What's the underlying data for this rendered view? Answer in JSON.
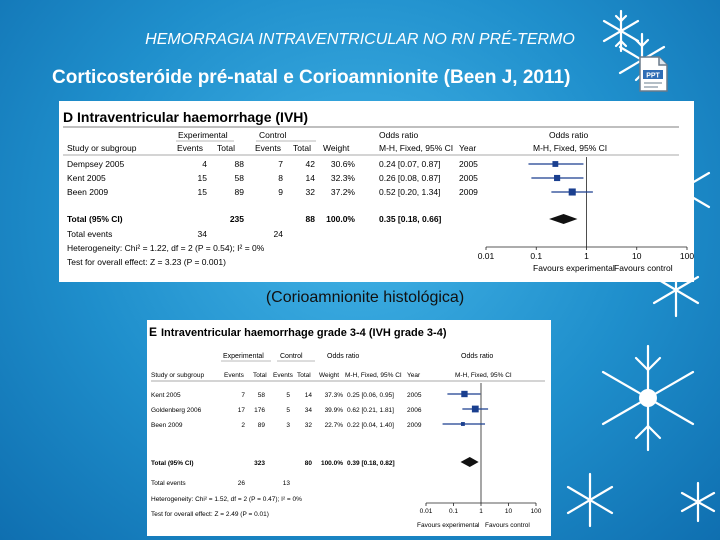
{
  "slide": {
    "subtitle": "HEMORRAGIA INTRAVENTRICULAR NO RN PRÉ-TERMO",
    "title": "Corticosteróide pré-natal e Corioamnionite (Been J, 2011)",
    "caption": "(Corioamnionite histológica)",
    "accent_color": "#1f8fcc",
    "icons": [
      "snowflake-icon",
      "ppt-file-icon"
    ]
  },
  "forest_d": {
    "label": "D",
    "heading": "Intraventricular haemorrhage (IVH)",
    "group_experimental": "Experimental",
    "group_control": "Control",
    "col_odds_ratio": "Odds ratio",
    "col_odds_ratio_plot": "Odds ratio",
    "columns": [
      "Study or subgroup",
      "Events",
      "Total",
      "Events",
      "Total",
      "Weight",
      "M-H, Fixed, 95% CI",
      "Year",
      "M-H, Fixed, 95% CI"
    ],
    "rows": [
      {
        "study": "Dempsey 2005",
        "e_events": "4",
        "e_total": "88",
        "c_events": "7",
        "c_total": "42",
        "weight": "30.6%",
        "ci": "0.24 [0.07, 0.87]",
        "year": "2005"
      },
      {
        "study": "Kent 2005",
        "e_events": "15",
        "e_total": "58",
        "c_events": "8",
        "c_total": "14",
        "weight": "32.3%",
        "ci": "0.26 [0.08, 0.87]",
        "year": "2005"
      },
      {
        "study": "Been 2009",
        "e_events": "15",
        "e_total": "89",
        "c_events": "9",
        "c_total": "32",
        "weight": "37.2%",
        "ci": "0.52 [0.20, 1.34]",
        "year": "2009"
      }
    ],
    "total": {
      "label": "Total (95% CI)",
      "e_total": "235",
      "c_total": "88",
      "weight": "100.0%",
      "ci": "0.35 [0.18, 0.66]"
    },
    "total_events": {
      "label": "Total events",
      "e": "34",
      "c": "24"
    },
    "heterogeneity": "Heterogeneity: Chi² = 1.22, df = 2 (P = 0.54); I² = 0%",
    "overall": "Test for overall effect: Z = 3.23 (P = 0.001)",
    "ticks": [
      "0.01",
      "0.1",
      "1",
      "10",
      "100"
    ],
    "favours_left": "Favours experimental",
    "favours_right": "Favours control"
  },
  "forest_e": {
    "label": "E",
    "heading": "Intraventricular haemorrhage grade 3-4 (IVH grade 3-4)",
    "group_experimental": "Experimental",
    "group_control": "Control",
    "col_odds_ratio": "Odds ratio",
    "col_odds_ratio_plot": "Odds ratio",
    "columns": [
      "Study or subgroup",
      "Events",
      "Total",
      "Events",
      "Total",
      "Weight",
      "M-H, Fixed, 95% CI",
      "Year",
      "M-H, Fixed, 95% CI"
    ],
    "rows": [
      {
        "study": "Kent 2005",
        "e_events": "7",
        "e_total": "58",
        "c_events": "5",
        "c_total": "14",
        "weight": "37.3%",
        "ci": "0.25 [0.06, 0.95]",
        "year": "2005"
      },
      {
        "study": "Goldenberg 2006",
        "e_events": "17",
        "e_total": "176",
        "c_events": "5",
        "c_total": "34",
        "weight": "39.9%",
        "ci": "0.62 [0.21, 1.81]",
        "year": "2006"
      },
      {
        "study": "Been 2009",
        "e_events": "2",
        "e_total": "89",
        "c_events": "3",
        "c_total": "32",
        "weight": "22.7%",
        "ci": "0.22 [0.04, 1.40]",
        "year": "2009"
      }
    ],
    "total": {
      "label": "Total (95% CI)",
      "e_total": "323",
      "c_total": "80",
      "weight": "100.0%",
      "ci": "0.39 [0.18, 0.82]"
    },
    "total_events": {
      "label": "Total events",
      "e": "26",
      "c": "13"
    },
    "heterogeneity": "Heterogeneity: Chi² = 1.52, df = 2 (P = 0.47); I² = 0%",
    "overall": "Test for overall effect: Z = 2.49 (P = 0.01)",
    "ticks": [
      "0.01",
      "0.1",
      "1",
      "10",
      "100"
    ],
    "favours_left": "Favours experimental",
    "favours_right": "Favours control"
  },
  "chart_data": [
    {
      "type": "scatter",
      "x_scale": "log",
      "xlim": [
        0.01,
        100
      ],
      "xticks": [
        0.01,
        0.1,
        1,
        10,
        100
      ],
      "reference_line": 1,
      "studies": [
        {
          "label": "Dempsey 2005",
          "or": 0.24,
          "lo": 0.07,
          "hi": 0.87,
          "weight": 30.6
        },
        {
          "label": "Kent 2005",
          "or": 0.26,
          "lo": 0.08,
          "hi": 0.87,
          "weight": 32.3
        },
        {
          "label": "Been 2009",
          "or": 0.52,
          "lo": 0.2,
          "hi": 1.34,
          "weight": 37.2
        }
      ],
      "pooled": {
        "or": 0.35,
        "lo": 0.18,
        "hi": 0.66
      }
    },
    {
      "type": "scatter",
      "x_scale": "log",
      "xlim": [
        0.01,
        100
      ],
      "xticks": [
        0.01,
        0.1,
        1,
        10,
        100
      ],
      "reference_line": 1,
      "studies": [
        {
          "label": "Kent 2005",
          "or": 0.25,
          "lo": 0.06,
          "hi": 0.95,
          "weight": 37.3
        },
        {
          "label": "Goldenberg 2006",
          "or": 0.62,
          "lo": 0.21,
          "hi": 1.81,
          "weight": 39.9
        },
        {
          "label": "Been 2009",
          "or": 0.22,
          "lo": 0.04,
          "hi": 1.4,
          "weight": 22.7
        }
      ],
      "pooled": {
        "or": 0.39,
        "lo": 0.18,
        "hi": 0.82
      }
    }
  ]
}
